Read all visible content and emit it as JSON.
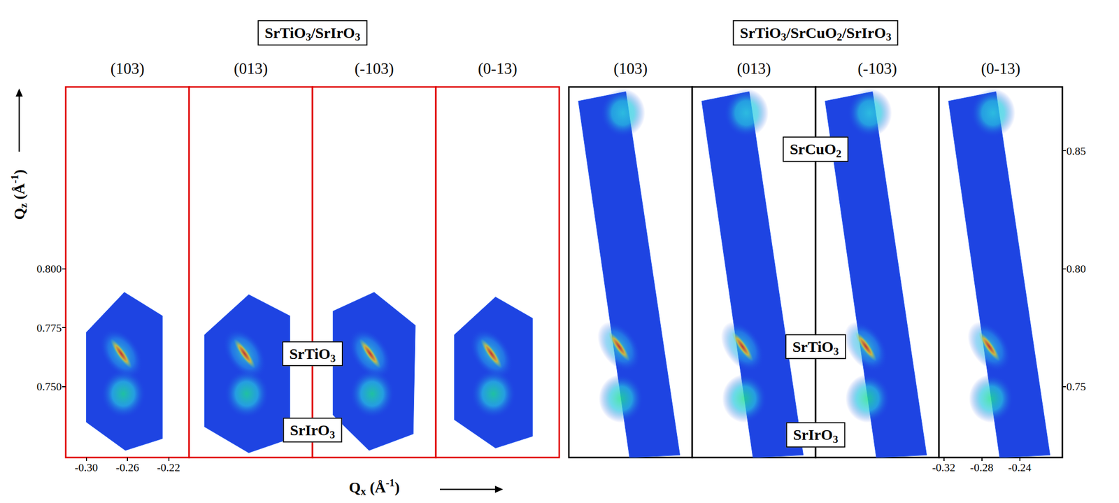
{
  "chart_data": [
    {
      "type": "scatter",
      "group": "SrTiO3/SrIrO3",
      "title": "(103)",
      "color": "#e00000",
      "x_label": "Qx (Å-1)",
      "y_label": "Qz (Å-1)",
      "xlim": [
        -0.32,
        -0.2
      ],
      "ylim": [
        0.72,
        0.877
      ],
      "xticks": [
        {
          "value": -0.3,
          "label": "-0.30"
        },
        -0.26,
        -0.22
      ],
      "yticks": [
        {
          "value": 0.75,
          "label": "0.750"
        },
        0.775,
        {
          "value": 0.8,
          "label": "0.800"
        }
      ],
      "tick_labels": true,
      "scan_area": [
        [
          -0.3,
          0.773
        ],
        [
          -0.263,
          0.79
        ],
        [
          -0.226,
          0.78
        ],
        [
          -0.226,
          0.728
        ],
        [
          -0.262,
          0.723
        ],
        [
          -0.3,
          0.735
        ]
      ],
      "peaks": [
        {
          "name": "SrTiO3",
          "x": -0.266,
          "y": 0.764,
          "color": "#e01010",
          "marker": "streak"
        },
        {
          "name": "SrIrO3",
          "x": -0.264,
          "y": 0.747,
          "color": "#20e090",
          "marker": "ellipse"
        }
      ]
    },
    {
      "type": "scatter",
      "group": "SrTiO3/SrIrO3",
      "title": "(013)",
      "color": "#e00000",
      "xlim": [
        -0.32,
        -0.2
      ],
      "ylim": [
        0.72,
        0.877
      ],
      "tick_labels": false,
      "scan_area": [
        [
          -0.305,
          0.772
        ],
        [
          -0.262,
          0.789
        ],
        [
          -0.222,
          0.78
        ],
        [
          -0.222,
          0.728
        ],
        [
          -0.262,
          0.722
        ],
        [
          -0.305,
          0.733
        ]
      ],
      "peaks": [
        {
          "name": "SrTiO3",
          "x": -0.266,
          "y": 0.764,
          "color": "#e01010",
          "marker": "streak"
        },
        {
          "name": "SrIrO3",
          "x": -0.264,
          "y": 0.747,
          "color": "#20e090",
          "marker": "ellipse"
        }
      ],
      "annotations": [
        "SrTiO3",
        "SrIrO3"
      ]
    },
    {
      "type": "scatter",
      "group": "SrTiO3/SrIrO3",
      "title": "(-103)",
      "color": "#e00000",
      "xlim": [
        -0.32,
        -0.2
      ],
      "ylim": [
        0.72,
        0.877
      ],
      "tick_labels": false,
      "scan_area": [
        [
          -0.3,
          0.782
        ],
        [
          -0.26,
          0.79
        ],
        [
          -0.22,
          0.776
        ],
        [
          -0.222,
          0.73
        ],
        [
          -0.265,
          0.723
        ],
        [
          -0.3,
          0.738
        ]
      ],
      "peaks": [
        {
          "name": "SrTiO3",
          "x": -0.264,
          "y": 0.764,
          "color": "#e01010",
          "marker": "streak"
        },
        {
          "name": "SrIrO3",
          "x": -0.262,
          "y": 0.747,
          "color": "#20e090",
          "marker": "ellipse"
        }
      ]
    },
    {
      "type": "scatter",
      "group": "SrTiO3/SrIrO3",
      "title": "(0-13)",
      "color": "#e00000",
      "xlim": [
        -0.32,
        -0.2
      ],
      "ylim": [
        0.72,
        0.877
      ],
      "tick_labels": false,
      "scan_area": [
        [
          -0.302,
          0.772
        ],
        [
          -0.262,
          0.788
        ],
        [
          -0.226,
          0.779
        ],
        [
          -0.226,
          0.729
        ],
        [
          -0.262,
          0.724
        ],
        [
          -0.302,
          0.736
        ]
      ],
      "peaks": [
        {
          "name": "SrTiO3",
          "x": -0.266,
          "y": 0.764,
          "color": "#e01010",
          "marker": "streak"
        },
        {
          "name": "SrIrO3",
          "x": -0.264,
          "y": 0.747,
          "color": "#20e090",
          "marker": "ellipse"
        }
      ]
    },
    {
      "type": "scatter",
      "group": "SrTiO3/SrCuO2/SrIrO3",
      "title": "(103)",
      "color": "#000000",
      "xlim": [
        -0.325,
        -0.195
      ],
      "ylim": [
        0.72,
        0.877
      ],
      "tick_labels": false,
      "scan_area": [
        [
          -0.315,
          0.871
        ],
        [
          -0.265,
          0.875
        ],
        [
          -0.208,
          0.721
        ],
        [
          -0.261,
          0.72
        ]
      ],
      "peaks": [
        {
          "name": "SrCuO2",
          "x": -0.268,
          "y": 0.866,
          "color": "#30d8e0",
          "marker": "ellipse"
        },
        {
          "name": "SrTiO3",
          "x": -0.272,
          "y": 0.767,
          "color": "#e01010",
          "marker": "streak"
        },
        {
          "name": "SrIrO3",
          "x": -0.27,
          "y": 0.745,
          "color": "#20e090",
          "marker": "ellipse"
        }
      ]
    },
    {
      "type": "scatter",
      "group": "SrTiO3/SrCuO2/SrIrO3",
      "title": "(013)",
      "color": "#000000",
      "xlim": [
        -0.325,
        -0.195
      ],
      "ylim": [
        0.72,
        0.877
      ],
      "tick_labels": false,
      "scan_area": [
        [
          -0.315,
          0.871
        ],
        [
          -0.265,
          0.875
        ],
        [
          -0.208,
          0.721
        ],
        [
          -0.261,
          0.72
        ]
      ],
      "peaks": [
        {
          "name": "SrCuO2",
          "x": -0.268,
          "y": 0.866,
          "color": "#30d8e0",
          "marker": "ellipse"
        },
        {
          "name": "SrTiO3",
          "x": -0.272,
          "y": 0.767,
          "color": "#e01010",
          "marker": "streak"
        },
        {
          "name": "SrIrO3",
          "x": -0.27,
          "y": 0.745,
          "color": "#20e090",
          "marker": "ellipse"
        }
      ],
      "annotations": [
        "SrCuO2",
        "SrTiO3",
        "SrIrO3"
      ]
    },
    {
      "type": "scatter",
      "group": "SrTiO3/SrCuO2/SrIrO3",
      "title": "(-103)",
      "color": "#000000",
      "xlim": [
        -0.325,
        -0.195
      ],
      "ylim": [
        0.72,
        0.877
      ],
      "tick_labels": false,
      "scan_area": [
        [
          -0.315,
          0.871
        ],
        [
          -0.265,
          0.875
        ],
        [
          -0.208,
          0.721
        ],
        [
          -0.261,
          0.72
        ]
      ],
      "peaks": [
        {
          "name": "SrCuO2",
          "x": -0.268,
          "y": 0.866,
          "color": "#30d8e0",
          "marker": "ellipse"
        },
        {
          "name": "SrTiO3",
          "x": -0.272,
          "y": 0.767,
          "color": "#e01010",
          "marker": "streak"
        },
        {
          "name": "SrIrO3",
          "x": -0.27,
          "y": 0.745,
          "color": "#20e090",
          "marker": "ellipse"
        }
      ]
    },
    {
      "type": "scatter",
      "group": "SrTiO3/SrCuO2/SrIrO3",
      "title": "(0-13)",
      "color": "#000000",
      "xlim": [
        -0.325,
        -0.195
      ],
      "ylim": [
        0.72,
        0.877
      ],
      "xticks": [
        -0.32,
        -0.28,
        -0.24
      ],
      "yticks": [
        {
          "value": 0.75,
          "label": "0.75"
        },
        {
          "value": 0.8,
          "label": "0.80"
        },
        0.85
      ],
      "tick_labels": true,
      "scan_area": [
        [
          -0.315,
          0.871
        ],
        [
          -0.265,
          0.875
        ],
        [
          -0.208,
          0.721
        ],
        [
          -0.261,
          0.72
        ]
      ],
      "peaks": [
        {
          "name": "SrCuO2",
          "x": -0.268,
          "y": 0.866,
          "color": "#30d8e0",
          "marker": "ellipse"
        },
        {
          "name": "SrTiO3",
          "x": -0.272,
          "y": 0.767,
          "color": "#e01010",
          "marker": "streak"
        },
        {
          "name": "SrIrO3",
          "x": -0.27,
          "y": 0.745,
          "color": "#20e090",
          "marker": "ellipse"
        }
      ]
    }
  ]
}
